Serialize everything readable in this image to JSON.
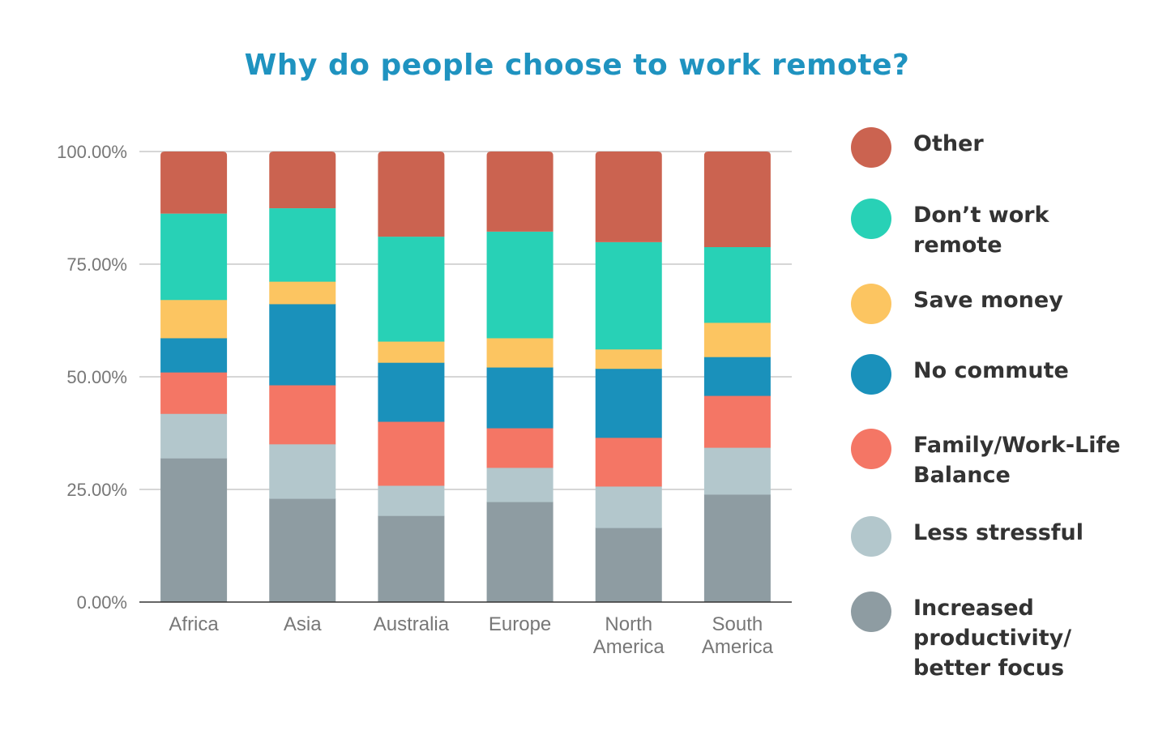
{
  "chart_data": {
    "type": "bar",
    "stacked": true,
    "title": "Why do people choose to work remote?",
    "xlabel": "",
    "ylabel": "",
    "ylim": [
      0,
      100
    ],
    "yticks": [
      "0.00%",
      "25.00%",
      "50.00%",
      "75.00%",
      "100.00%"
    ],
    "ytick_values": [
      0,
      25,
      50,
      75,
      100
    ],
    "grid": true,
    "legend_position": "right",
    "categories": [
      "Africa",
      "Asia",
      "Australia",
      "Europe",
      "North America",
      "South America"
    ],
    "category_lines": [
      [
        "Africa"
      ],
      [
        "Asia"
      ],
      [
        "Australia"
      ],
      [
        "Europe"
      ],
      [
        "North",
        "America"
      ],
      [
        "South",
        "America"
      ]
    ],
    "series": [
      {
        "name": "Increased productivity/ better focus",
        "legend_label": "Increased\nproductivity/\nbetter focus",
        "color": "#8e9ca2",
        "values": [
          32.0,
          23.0,
          19.2,
          22.3,
          16.5,
          23.9
        ]
      },
      {
        "name": "Less stressful",
        "legend_label": "Less stressful",
        "color": "#b3c7cc",
        "values": [
          9.9,
          12.1,
          6.7,
          7.6,
          9.2,
          10.4
        ]
      },
      {
        "name": "Family/Work-Life Balance",
        "legend_label": "Family/Work-Life\nBalance",
        "color": "#f47665",
        "values": [
          9.2,
          13.1,
          14.2,
          8.8,
          10.8,
          11.5
        ]
      },
      {
        "name": "No commute",
        "legend_label": "No commute",
        "color": "#1a91bb",
        "values": [
          7.6,
          18.0,
          13.1,
          13.5,
          15.3,
          8.6
        ]
      },
      {
        "name": "Save money",
        "legend_label": "Save money",
        "color": "#fcc561",
        "values": [
          8.5,
          5.0,
          4.7,
          6.5,
          4.3,
          7.6
        ]
      },
      {
        "name": "Don't work remote",
        "legend_label": "Don’t work\nremote",
        "color": "#28d1b6",
        "values": [
          19.1,
          16.2,
          23.2,
          23.6,
          23.7,
          16.7
        ]
      },
      {
        "name": "Other",
        "legend_label": "Other",
        "color": "#cb6350",
        "values": [
          13.8,
          12.6,
          18.9,
          17.8,
          20.1,
          21.2
        ]
      }
    ],
    "legend_order": [
      "Other",
      "Don't work remote",
      "Save money",
      "No commute",
      "Family/Work-Life Balance",
      "Less stressful",
      "Increased productivity/ better focus"
    ]
  },
  "colors": {
    "title": "#1f93c0",
    "grid": "#d6d6d6",
    "axis": "#333333",
    "tick_text": "#777777",
    "legend_text": "#333333"
  }
}
